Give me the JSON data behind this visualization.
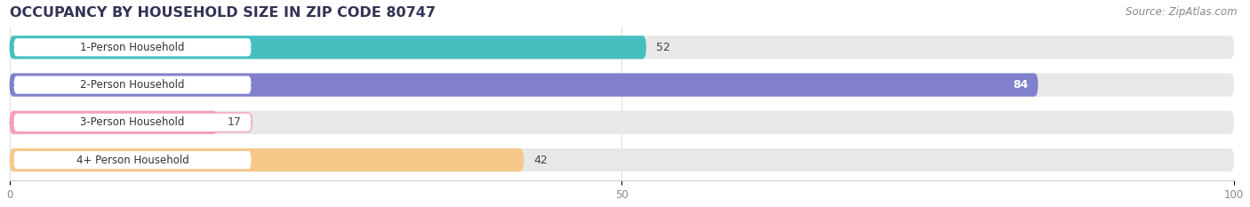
{
  "title": "OCCUPANCY BY HOUSEHOLD SIZE IN ZIP CODE 80747",
  "source": "Source: ZipAtlas.com",
  "categories": [
    "1-Person Household",
    "2-Person Household",
    "3-Person Household",
    "4+ Person Household"
  ],
  "values": [
    52,
    84,
    17,
    42
  ],
  "bar_colors": [
    "#45BFBF",
    "#8080CC",
    "#F4A0B8",
    "#F5C98A"
  ],
  "label_bg_color": "#ffffff",
  "value_label_inside": [
    false,
    true,
    false,
    false
  ],
  "xlim": [
    0,
    100
  ],
  "xticks": [
    0,
    50,
    100
  ],
  "background_color": "#ffffff",
  "bar_background_color": "#e8e8e8",
  "title_fontsize": 11.5,
  "source_fontsize": 8.5,
  "bar_height": 0.62,
  "bar_gap": 1.0
}
